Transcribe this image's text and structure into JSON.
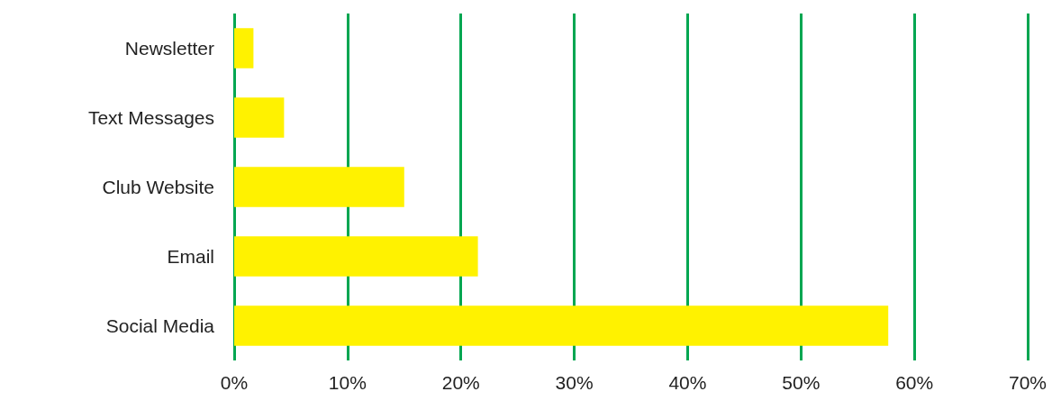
{
  "chart_data": {
    "type": "bar",
    "orientation": "horizontal",
    "categories": [
      "Newsletter",
      "Text Messages",
      "Club Website",
      "Email",
      "Social Media"
    ],
    "values": [
      1.7,
      4.4,
      15,
      21.5,
      57.7
    ],
    "color": "#fff200",
    "xlim": [
      0,
      70
    ],
    "xticks": [
      {
        "value": 0,
        "label": "0%"
      },
      {
        "value": 10,
        "label": "10%"
      },
      {
        "value": 20,
        "label": "20%"
      },
      {
        "value": 30,
        "label": "30%"
      },
      {
        "value": 40,
        "label": "40%"
      },
      {
        "value": 50,
        "label": "50%"
      },
      {
        "value": 60,
        "label": "60%"
      },
      {
        "value": 70,
        "label": "70%"
      }
    ],
    "grid": "x"
  }
}
